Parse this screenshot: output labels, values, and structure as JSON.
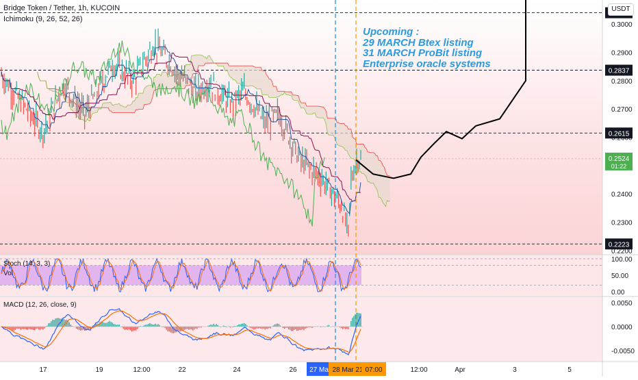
{
  "header": {
    "symbol_line": "Bridge Token / Tether, 1h, KUCOIN",
    "ichimoku_label": "Ichimoku (9, 26, 52, 26)"
  },
  "currency_button": "USDT",
  "annotation": [
    "Upcoming :",
    "29 MARCH Btex listing",
    "31 MARCH ProBit listing",
    "Enterprise oracle systems"
  ],
  "colors": {
    "background_zone": "#fbd3d6",
    "stoch_band": "#e3b5ee",
    "blue_line": "#2962ff",
    "orange_line": "#ff6d00",
    "projection": "#000000",
    "lagging_span": "#4caf50",
    "cloud_edge_red": "#ef5350",
    "price_tag_last": "#4caf50"
  },
  "chart_data": [
    {
      "type": "line",
      "name": "price_panel",
      "x_axis": {
        "tick_labels": [
          "17",
          "19",
          "12:00",
          "22",
          "24",
          "26",
          "27 Ma",
          "28 Mar 21",
          "07:00",
          "12:00",
          "Apr",
          "3",
          "5"
        ]
      },
      "y_axis": {
        "ylim": [
          0.2185,
          0.3085
        ],
        "tick_labels": [
          "0.3000",
          "0.2900",
          "0.2800",
          "0.2700",
          "0.2600",
          "0.2500",
          "0.2400",
          "0.2300",
          "0.2200"
        ],
        "tick_values": [
          0.3,
          0.29,
          0.28,
          0.27,
          0.26,
          0.25,
          0.24,
          0.23,
          0.22
        ]
      },
      "horizontal_levels": [
        {
          "value": 0.304,
          "label": "0.3040"
        },
        {
          "value": 0.2837,
          "label": "0.2837"
        },
        {
          "value": 0.2615,
          "label": "0.2615"
        },
        {
          "value": 0.2223,
          "label": "0.2223"
        }
      ],
      "last_price": {
        "value": 0.2524,
        "label": "0.2524",
        "countdown": "01:22"
      },
      "vertical_markers": [
        "27 Mar blue",
        "28 Mar orange"
      ],
      "projection_path": {
        "x_labels_hint": "from 28 Mar 21 to past 3",
        "y": [
          0.252,
          0.247,
          0.2455,
          0.247,
          0.253,
          0.258,
          0.262,
          0.2595,
          0.264,
          0.2665,
          0.28,
          0.31
        ]
      }
    },
    {
      "type": "line",
      "name": "stoch_panel",
      "label": "Stoch (14, 3, 3)",
      "sublabel": "Vol",
      "ylim": [
        0,
        100
      ],
      "tick_labels": [
        "100.00",
        "50.00",
        "0.00"
      ],
      "tick_values": [
        100,
        50,
        0
      ],
      "band": [
        20,
        80
      ]
    },
    {
      "type": "line",
      "name": "macd_panel",
      "label": "MACD (12, 26, close, 9)",
      "ylim": [
        -0.0073,
        0.0063
      ],
      "tick_labels": [
        "0.0050",
        "0.0000",
        "-0.0050"
      ],
      "tick_values": [
        0.005,
        0.0,
        -0.005
      ]
    }
  ]
}
